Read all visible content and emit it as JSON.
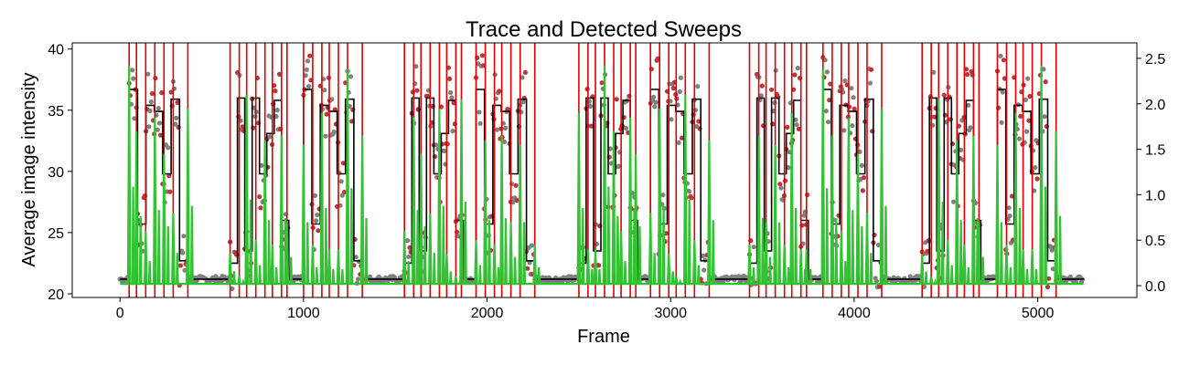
{
  "chart_data": {
    "type": "line",
    "title": "Trace and Detected Sweeps",
    "xlabel": "Frame",
    "ylabel": "Average image intensity",
    "y2label": "",
    "xlim": [
      -260,
      5540
    ],
    "ylim": [
      19.7,
      40.5
    ],
    "y2lim": [
      -0.13,
      2.67
    ],
    "xticks": [
      0,
      1000,
      2000,
      3000,
      4000,
      5000
    ],
    "yticks": [
      20,
      25,
      30,
      35,
      40
    ],
    "y2ticks": [
      0.0,
      0.5,
      1.0,
      1.5,
      2.0,
      2.5
    ],
    "grid": false,
    "legend": "none",
    "colors": {
      "raw_points": "#808080",
      "highlight_points": "#c0353a",
      "mean_trace": "#000000",
      "derivative": "#33c233",
      "sweep_markers": "#e00000"
    },
    "baseline_intensity": 21.2,
    "cycle_starts": [
      50,
      1000,
      1940,
      2890,
      3830,
      4780
    ],
    "cycle_starts_b": [
      600,
      1550,
      2500,
      3430,
      4370
    ],
    "levels_a": [
      36.7,
      25.7,
      35.4,
      34.9,
      29.8,
      35.9,
      22.7
    ],
    "levels_b": [
      22.5,
      36.0,
      23.5,
      36.0,
      29.8,
      33.1,
      35.8,
      26.0
    ],
    "sweep_frames": [
      50,
      90,
      140,
      190,
      240,
      290,
      370,
      600,
      650,
      690,
      740,
      790,
      830,
      880,
      910,
      1000,
      1050,
      1100,
      1140,
      1190,
      1240,
      1320,
      1550,
      1600,
      1640,
      1690,
      1740,
      1780,
      1830,
      1860,
      1940,
      1990,
      2040,
      2080,
      2130,
      2180,
      2260,
      2500,
      2550,
      2590,
      2640,
      2690,
      2730,
      2780,
      2810,
      2890,
      2940,
      2990,
      3030,
      3080,
      3130,
      3210,
      3430,
      3480,
      3520,
      3570,
      3620,
      3660,
      3710,
      3740,
      3830,
      3880,
      3930,
      3970,
      4020,
      4070,
      4150,
      4370,
      4420,
      4460,
      4510,
      4560,
      4600,
      4650,
      4680,
      4780,
      4830,
      4880,
      4920,
      4970,
      5020,
      5100
    ],
    "derivative_peaks": [
      2.42,
      1.7,
      0.6,
      1.85,
      1.45,
      0.8,
      1.95,
      0.35,
      0.1,
      2.1,
      0.5,
      1.6,
      0.45,
      1.65,
      0.7,
      1.55,
      0.45,
      1.9,
      0.4,
      0.4,
      2.38,
      1.65,
      0.6,
      1.85,
      1.45,
      0.8,
      1.95,
      0.35,
      0.1,
      2.05,
      0.5,
      1.6,
      0.45,
      1.65,
      0.7,
      1.55,
      0.45,
      1.9,
      0.4,
      0.4
    ]
  }
}
